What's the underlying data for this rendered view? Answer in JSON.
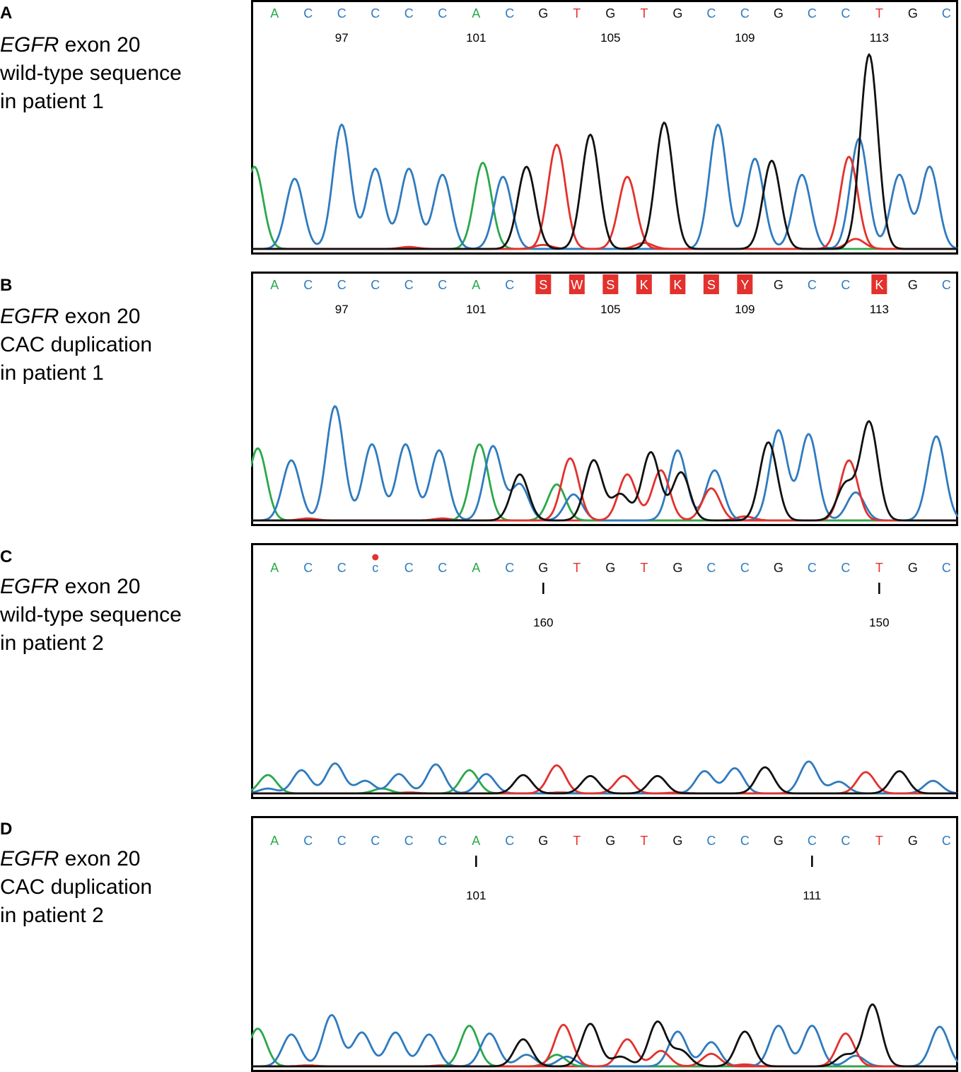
{
  "colors": {
    "A": "#2aa84a",
    "C": "#2f7bbf",
    "G": "#111111",
    "T": "#e3312d",
    "ambiguous_bg": "#e3312d",
    "ambiguous_text": "#ffffff"
  },
  "chart_data": [
    {
      "type": "chromatogram",
      "panel_label": "A",
      "caption": {
        "gene": "EGFR",
        "line1_rest": " exon 20",
        "line2": "wild-type sequence",
        "line3": "in patient 1"
      },
      "bases": [
        "A",
        "C",
        "C",
        "C",
        "C",
        "C",
        "A",
        "C",
        "G",
        "T",
        "G",
        "T",
        "G",
        "C",
        "C",
        "G",
        "C",
        "C",
        "T",
        "G",
        "C"
      ],
      "base_positions": [
        1,
        2,
        3,
        4,
        5,
        6,
        7,
        8,
        9,
        10,
        11,
        12,
        13,
        14,
        15,
        16,
        17,
        18,
        19,
        20,
        21
      ],
      "position_labels": [
        {
          "text": "97",
          "x": 3
        },
        {
          "text": "101",
          "x": 7
        },
        {
          "text": "105",
          "x": 11
        },
        {
          "text": "109",
          "x": 15
        },
        {
          "text": "113",
          "x": 19
        }
      ],
      "xlim": [
        0.3,
        21.35
      ],
      "ylim": [
        0,
        100
      ],
      "traces": {
        "A": [
          [
            0.4,
            41
          ],
          [
            2.0,
            0
          ],
          [
            7.2,
            43
          ]
        ],
        "C": [
          [
            1.6,
            35
          ],
          [
            3.0,
            62
          ],
          [
            4.0,
            40
          ],
          [
            5.0,
            40
          ],
          [
            6.0,
            37
          ],
          [
            7.8,
            36
          ],
          [
            14.2,
            62
          ],
          [
            15.3,
            45
          ],
          [
            16.7,
            37
          ],
          [
            18.4,
            55
          ],
          [
            19.6,
            37
          ],
          [
            20.5,
            41
          ]
        ],
        "G": [
          [
            8.5,
            41
          ],
          [
            10.4,
            57
          ],
          [
            12.6,
            63
          ],
          [
            15.8,
            44
          ],
          [
            18.7,
            97
          ],
          [
            20.0,
            0
          ]
        ],
        "T": [
          [
            9.4,
            52
          ],
          [
            11.5,
            36
          ],
          [
            18.1,
            46
          ]
        ],
        "noise": [
          [
            5.0,
            1
          ],
          [
            9.0,
            2
          ],
          [
            12.0,
            3
          ],
          [
            18.3,
            5
          ]
        ]
      },
      "ambiguous": []
    },
    {
      "type": "chromatogram",
      "panel_label": "B",
      "caption": {
        "gene": "EGFR",
        "line1_rest": " exon 20",
        "line2": "CAC duplication",
        "line3": "in patient 1"
      },
      "bases": [
        "A",
        "C",
        "C",
        "C",
        "C",
        "C",
        "A",
        "C",
        "S",
        "W",
        "S",
        "K",
        "K",
        "S",
        "Y",
        "G",
        "C",
        "C",
        "K",
        "G",
        "C"
      ],
      "base_positions": [
        1,
        2,
        3,
        4,
        5,
        6,
        7,
        8,
        9,
        10,
        11,
        12,
        13,
        14,
        15,
        16,
        17,
        18,
        19,
        20,
        21
      ],
      "position_labels": [
        {
          "text": "97",
          "x": 3
        },
        {
          "text": "101",
          "x": 7
        },
        {
          "text": "105",
          "x": 11
        },
        {
          "text": "109",
          "x": 15
        },
        {
          "text": "113",
          "x": 19
        }
      ],
      "xlim": [
        0.3,
        21.35
      ],
      "ylim": [
        0,
        100
      ],
      "traces": {
        "A": [
          [
            0.5,
            36
          ],
          [
            7.1,
            38
          ],
          [
            9.4,
            18
          ]
        ],
        "C": [
          [
            1.5,
            30
          ],
          [
            2.8,
            57
          ],
          [
            3.9,
            38
          ],
          [
            4.9,
            38
          ],
          [
            5.9,
            35
          ],
          [
            7.5,
            37
          ],
          [
            8.3,
            18
          ],
          [
            9.9,
            13
          ],
          [
            13.0,
            35
          ],
          [
            14.1,
            25
          ],
          [
            16.0,
            45
          ],
          [
            16.9,
            43
          ],
          [
            18.3,
            14
          ],
          [
            20.7,
            42
          ]
        ],
        "G": [
          [
            8.3,
            23
          ],
          [
            10.5,
            30
          ],
          [
            11.3,
            13
          ],
          [
            12.2,
            34
          ],
          [
            13.1,
            24
          ],
          [
            15.7,
            39
          ],
          [
            18.0,
            18
          ],
          [
            18.7,
            49
          ]
        ],
        "T": [
          [
            9.8,
            31
          ],
          [
            11.5,
            23
          ],
          [
            12.5,
            25
          ],
          [
            14.0,
            16
          ],
          [
            18.1,
            30
          ]
        ],
        "noise": [
          [
            2.0,
            1
          ],
          [
            6.0,
            1
          ],
          [
            15.0,
            2
          ]
        ]
      },
      "ambiguous": [
        9,
        10,
        11,
        12,
        13,
        14,
        15,
        19
      ]
    },
    {
      "type": "chromatogram",
      "panel_label": "C",
      "caption": {
        "gene": "EGFR",
        "line1_rest": " exon 20",
        "line2": "wild-type sequence",
        "line3": "in patient 2"
      },
      "bases": [
        "A",
        "C",
        "C",
        "c",
        "C",
        "C",
        "A",
        "C",
        "G",
        "T",
        "G",
        "T",
        "G",
        "C",
        "C",
        "G",
        "C",
        "C",
        "T",
        "G",
        "C"
      ],
      "base_positions": [
        1,
        2,
        3,
        4,
        5,
        6,
        7,
        8,
        9,
        10,
        11,
        12,
        13,
        14,
        15,
        16,
        17,
        18,
        19,
        20,
        21
      ],
      "position_labels": [
        {
          "text": "160",
          "x": 9
        },
        {
          "text": "150",
          "x": 19
        }
      ],
      "tick_positions": [
        9,
        19
      ],
      "marked_base_index": 4,
      "xlim": [
        0.3,
        21.35
      ],
      "ylim": [
        0,
        100
      ],
      "traces": {
        "A": [
          [
            0.8,
            19
          ],
          [
            4.2,
            5
          ],
          [
            6.8,
            24
          ]
        ],
        "C": [
          [
            0.8,
            5
          ],
          [
            1.8,
            24
          ],
          [
            2.8,
            31
          ],
          [
            3.7,
            13
          ],
          [
            4.7,
            20
          ],
          [
            5.8,
            30
          ],
          [
            7.3,
            20
          ],
          [
            13.8,
            23
          ],
          [
            14.7,
            26
          ],
          [
            16.9,
            33
          ],
          [
            17.8,
            12
          ],
          [
            20.6,
            13
          ]
        ],
        "G": [
          [
            8.4,
            19
          ],
          [
            10.4,
            18
          ],
          [
            12.4,
            18
          ],
          [
            15.6,
            27
          ],
          [
            19.6,
            23
          ]
        ],
        "T": [
          [
            9.4,
            29
          ],
          [
            11.4,
            18
          ],
          [
            18.6,
            22
          ]
        ],
        "noise": [
          [
            5.0,
            1
          ],
          [
            9.5,
            1
          ],
          [
            13.0,
            1
          ]
        ]
      },
      "ambiguous": []
    },
    {
      "type": "chromatogram",
      "panel_label": "D",
      "caption": {
        "gene": "EGFR",
        "line1_rest": " exon 20",
        "line2": "CAC duplication",
        "line3": "in patient 2"
      },
      "bases": [
        "A",
        "C",
        "C",
        "C",
        "C",
        "C",
        "A",
        "C",
        "G",
        "T",
        "G",
        "T",
        "G",
        "C",
        "C",
        "G",
        "C",
        "C",
        "T",
        "G",
        "C"
      ],
      "base_positions": [
        1,
        2,
        3,
        4,
        5,
        6,
        7,
        8,
        9,
        10,
        11,
        12,
        13,
        14,
        15,
        16,
        17,
        18,
        19,
        20,
        21
      ],
      "position_labels": [
        {
          "text": "101",
          "x": 7
        },
        {
          "text": "111",
          "x": 17
        }
      ],
      "tick_positions": [
        7,
        17
      ],
      "xlim": [
        0.3,
        21.35
      ],
      "ylim": [
        0,
        100
      ],
      "traces": {
        "A": [
          [
            0.5,
            39
          ],
          [
            6.8,
            42
          ],
          [
            9.4,
            12
          ]
        ],
        "C": [
          [
            1.5,
            33
          ],
          [
            2.7,
            53
          ],
          [
            3.6,
            35
          ],
          [
            4.6,
            35
          ],
          [
            5.6,
            33
          ],
          [
            7.4,
            34
          ],
          [
            8.5,
            12
          ],
          [
            9.7,
            10
          ],
          [
            13.0,
            36
          ],
          [
            14.0,
            25
          ],
          [
            16.0,
            42
          ],
          [
            17.0,
            42
          ],
          [
            18.3,
            11
          ],
          [
            20.8,
            41
          ]
        ],
        "G": [
          [
            8.4,
            28
          ],
          [
            10.4,
            44
          ],
          [
            11.3,
            10
          ],
          [
            12.4,
            46
          ],
          [
            13.1,
            16
          ],
          [
            15.0,
            36
          ],
          [
            18.0,
            12
          ],
          [
            18.8,
            64
          ]
        ],
        "T": [
          [
            9.6,
            43
          ],
          [
            11.5,
            28
          ],
          [
            12.5,
            16
          ],
          [
            14.0,
            13
          ],
          [
            18.0,
            34
          ]
        ],
        "noise": [
          [
            2.0,
            1
          ],
          [
            6.0,
            1
          ],
          [
            15.0,
            2
          ]
        ]
      },
      "ambiguous": []
    }
  ]
}
